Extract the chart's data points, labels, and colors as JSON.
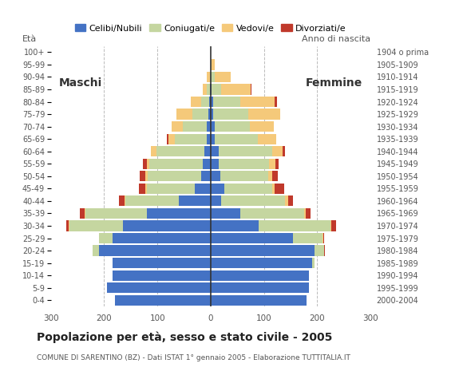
{
  "age_groups": [
    "0-4",
    "5-9",
    "10-14",
    "15-19",
    "20-24",
    "25-29",
    "30-34",
    "35-39",
    "40-44",
    "45-49",
    "50-54",
    "55-59",
    "60-64",
    "65-69",
    "70-74",
    "75-79",
    "80-84",
    "85-89",
    "90-94",
    "95-99",
    "100+"
  ],
  "birth_years": [
    "2000-2004",
    "1995-1999",
    "1990-1994",
    "1985-1989",
    "1980-1984",
    "1975-1979",
    "1970-1974",
    "1965-1969",
    "1960-1964",
    "1955-1959",
    "1950-1954",
    "1945-1949",
    "1940-1944",
    "1935-1939",
    "1930-1934",
    "1925-1929",
    "1920-1924",
    "1915-1919",
    "1910-1914",
    "1905-1909",
    "1904 o prima"
  ],
  "male_celibe": [
    180,
    195,
    185,
    185,
    210,
    185,
    165,
    120,
    60,
    30,
    18,
    15,
    12,
    8,
    8,
    5,
    3,
    2,
    0,
    0,
    0
  ],
  "male_coniugato": [
    0,
    0,
    0,
    0,
    12,
    25,
    100,
    115,
    100,
    90,
    100,
    100,
    90,
    60,
    45,
    30,
    15,
    5,
    2,
    0,
    0
  ],
  "male_vedovo": [
    0,
    0,
    0,
    0,
    0,
    0,
    1,
    2,
    2,
    3,
    5,
    5,
    10,
    12,
    20,
    30,
    20,
    8,
    5,
    0,
    0
  ],
  "male_divorziato": [
    0,
    0,
    0,
    0,
    0,
    0,
    5,
    8,
    10,
    12,
    10,
    8,
    1,
    3,
    0,
    0,
    0,
    0,
    0,
    0,
    0
  ],
  "female_nubile": [
    180,
    185,
    185,
    190,
    195,
    155,
    90,
    55,
    20,
    25,
    18,
    15,
    15,
    8,
    8,
    5,
    5,
    2,
    0,
    0,
    0
  ],
  "female_coniugata": [
    0,
    0,
    0,
    5,
    18,
    55,
    135,
    120,
    120,
    90,
    90,
    95,
    100,
    80,
    65,
    65,
    50,
    18,
    8,
    2,
    0
  ],
  "female_vedova": [
    0,
    0,
    0,
    0,
    0,
    1,
    2,
    3,
    5,
    5,
    8,
    12,
    20,
    35,
    45,
    60,
    65,
    55,
    30,
    5,
    0
  ],
  "female_divorziata": [
    0,
    0,
    0,
    0,
    2,
    2,
    8,
    10,
    10,
    18,
    10,
    5,
    5,
    0,
    0,
    0,
    5,
    2,
    0,
    0,
    0
  ],
  "color_celibe": "#4472C4",
  "color_coniugato": "#C5D6A0",
  "color_vedovo": "#F5C97A",
  "color_divorziato": "#C0392B",
  "title": "Popolazione per età, sesso e stato civile - 2005",
  "subtitle": "COMUNE DI SARENTINO (BZ) - Dati ISTAT 1° gennaio 2005 - Elaborazione TUTTITALIA.IT",
  "label_maschi": "Maschi",
  "label_femmine": "Femmine",
  "label_eta": "Età",
  "label_anno": "Anno di nascita",
  "legend_labels": [
    "Celibi/Nubili",
    "Coniugati/e",
    "Vedovi/e",
    "Divorziati/e"
  ],
  "xlim": 300,
  "xticks": [
    -300,
    -200,
    -100,
    0,
    100,
    200,
    300
  ]
}
